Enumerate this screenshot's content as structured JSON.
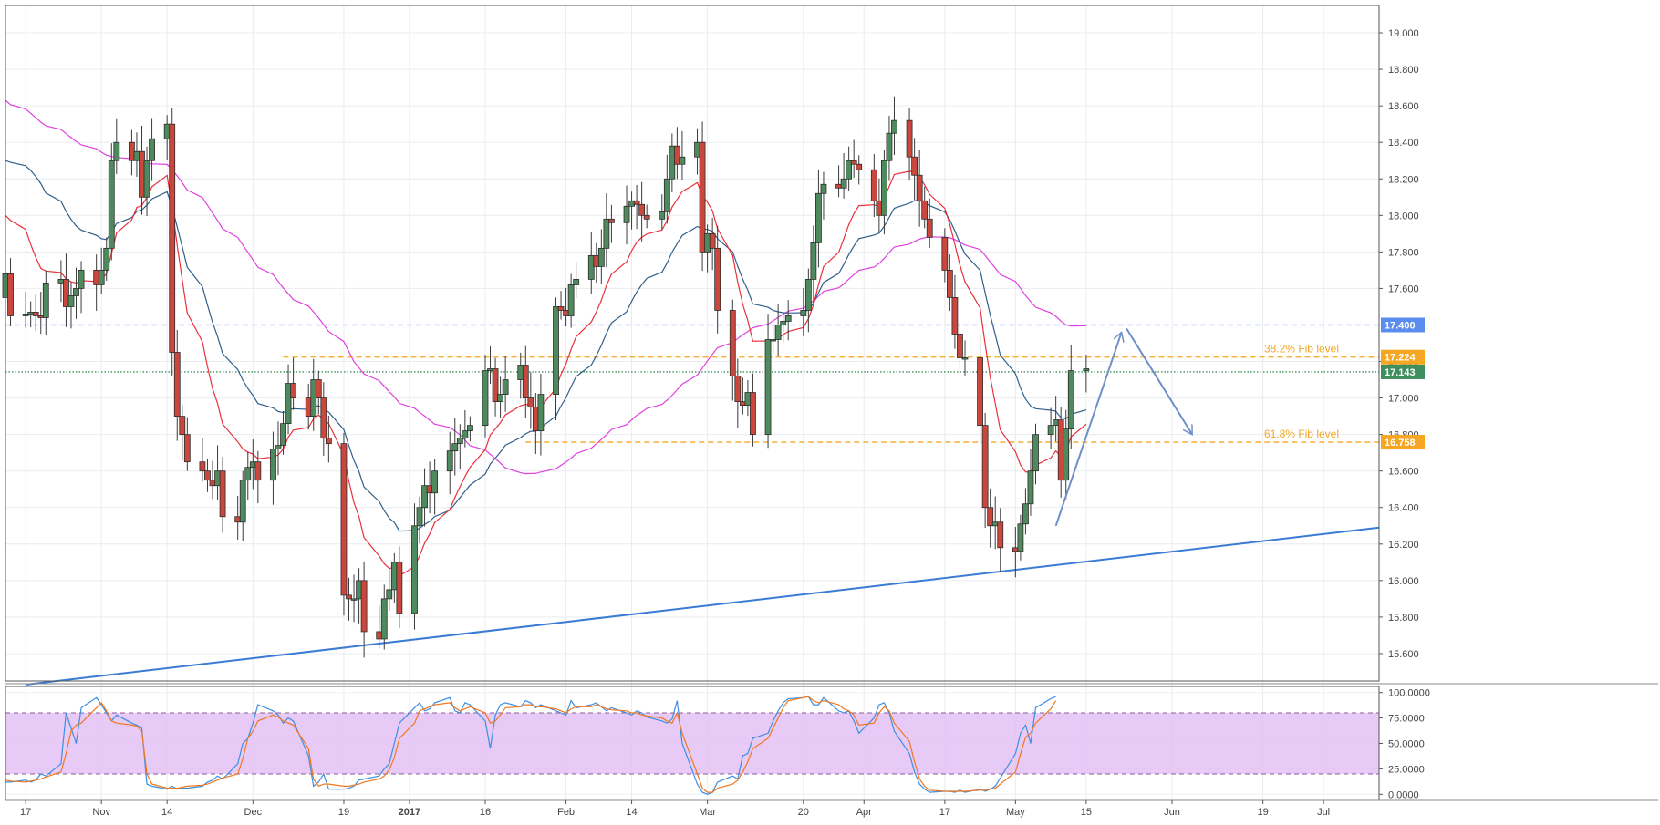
{
  "chart_data": [
    {
      "type": "candlestick",
      "panel": "price",
      "y_axis_ticks": [
        "19.000",
        "18.800",
        "18.600",
        "18.400",
        "18.200",
        "18.000",
        "17.800",
        "17.600",
        "17.400",
        "17.200",
        "17.000",
        "16.800",
        "16.600",
        "16.400",
        "16.200",
        "16.000",
        "15.800",
        "15.600"
      ],
      "ylim": [
        15.45,
        19.15
      ],
      "x_axis_ticks": [
        "17",
        "Nov",
        "14",
        "Dec",
        "19",
        "2017",
        "16",
        "Feb",
        "14",
        "Mar",
        "20",
        "Apr",
        "17",
        "May",
        "15",
        "Jun",
        "19",
        "Jul"
      ],
      "x_tick_dates": [
        "2016-10-17",
        "2016-11-01",
        "2016-11-14",
        "2016-12-01",
        "2016-12-19",
        "2017-01-01",
        "2017-01-16",
        "2017-02-01",
        "2017-02-14",
        "2017-03-01",
        "2017-03-20",
        "2017-04-01",
        "2017-04-17",
        "2017-05-01",
        "2017-05-15",
        "2017-06-01",
        "2017-06-19",
        "2017-07-01"
      ],
      "candles_close": [
        17.68,
        17.45,
        17.46,
        17.47,
        17.45,
        17.44,
        17.63,
        17.65,
        17.5,
        17.56,
        17.6,
        17.7,
        17.62,
        17.7,
        17.82,
        18.3,
        18.4,
        18.3,
        18.35,
        18.1,
        18.3,
        18.42,
        18.5,
        17.25,
        16.9,
        16.8,
        16.65,
        16.6,
        16.55,
        16.52,
        16.6,
        16.35,
        16.32,
        16.55,
        16.62,
        16.65,
        16.55,
        16.72,
        16.74,
        16.86,
        17.08,
        17.0,
        16.9,
        17.1,
        17.0,
        16.78,
        16.75,
        15.92,
        15.9,
        15.9,
        16.0,
        15.72,
        15.68,
        15.9,
        15.95,
        16.1,
        15.82,
        16.3,
        16.4,
        16.52,
        16.48,
        16.6,
        16.71,
        16.75,
        16.78,
        16.82,
        16.85,
        17.15,
        17.16,
        16.98,
        17.02,
        17.1,
        17.18,
        17.0,
        16.95,
        16.82,
        17.02,
        17.5,
        17.48,
        17.45,
        17.62,
        17.65,
        17.78,
        17.72,
        17.82,
        17.98,
        17.96,
        18.05,
        18.08,
        18.06,
        18.0,
        17.98,
        18.02,
        18.2,
        18.38,
        18.28,
        18.32,
        18.4,
        17.8,
        17.9,
        17.82,
        17.48,
        17.12,
        16.98,
        16.96,
        17.03,
        16.8,
        17.32,
        17.32,
        17.4,
        17.42,
        17.45,
        17.48,
        17.65,
        17.85,
        18.12,
        18.17,
        18.15,
        18.2,
        18.3,
        18.28,
        18.25,
        18.08,
        18.0,
        18.3,
        18.45,
        18.52,
        18.32,
        18.22,
        18.08,
        17.98,
        17.88,
        17.7,
        17.55,
        17.35,
        17.22,
        17.22,
        16.85,
        16.4,
        16.3,
        16.32,
        16.18,
        16.16,
        16.31,
        16.42,
        16.6,
        16.8,
        16.85,
        16.88,
        16.55,
        16.83,
        17.15,
        17.16
      ],
      "horizontal_levels": [
        {
          "value": 17.4,
          "label": "17.400",
          "color": "#5b8def",
          "style": "dashed"
        },
        {
          "value": 17.224,
          "label": "17.224",
          "text": "38.2% Fib level",
          "color": "#f5a623",
          "style": "dashed"
        },
        {
          "value": 17.143,
          "label": "17.143",
          "color": "#3e8e5e",
          "style": "dotted"
        },
        {
          "value": 16.758,
          "label": "16.758",
          "text": "61.8% Fib level",
          "color": "#f5a623",
          "style": "dashed"
        }
      ],
      "trendline": {
        "from": {
          "date": "2016-10-17",
          "value": 15.43
        },
        "to": {
          "date": "2017-07-12",
          "value": 16.29
        },
        "color": "#3a7bd5"
      },
      "arrows": [
        {
          "from": {
            "date": "2017-05-09",
            "value": 16.3
          },
          "to": {
            "date": "2017-05-22",
            "value": 17.36
          }
        },
        {
          "from": {
            "date": "2017-05-23",
            "value": 17.38
          },
          "to": {
            "date": "2017-06-05",
            "value": 16.8
          }
        }
      ],
      "colors": {
        "up": "#4f8a5e",
        "down": "#c9473d",
        "ema_fast": "#e8313b",
        "ema_slow": "#2f5f8a",
        "sma_long": "#e040e0"
      }
    },
    {
      "type": "line",
      "panel": "stochastic",
      "y_axis_ticks": [
        "100.0000",
        "75.0000",
        "50.0000",
        "25.0000",
        "0.0000"
      ],
      "ylim": [
        -6,
        106
      ],
      "band": [
        20,
        80
      ],
      "band_color": "#e3c1f5",
      "series": [
        {
          "color": "#3f8fe0",
          "values": [
            12,
            12,
            14,
            12,
            14,
            20,
            18,
            30,
            80,
            65,
            50,
            85,
            95,
            88,
            80,
            72,
            78,
            70,
            68,
            65,
            10,
            8,
            5,
            8,
            5,
            6,
            6,
            8,
            12,
            14,
            18,
            15,
            30,
            50,
            55,
            70,
            88,
            82,
            78,
            70,
            75,
            72,
            38,
            8,
            12,
            20,
            5,
            5,
            6,
            8,
            14,
            15,
            18,
            25,
            30,
            50,
            70,
            85,
            90,
            82,
            84,
            90,
            95,
            82,
            80,
            90,
            88,
            72,
            45,
            78,
            88,
            90,
            86,
            92,
            90,
            85,
            88,
            82,
            80,
            78,
            92,
            85,
            88,
            90,
            86,
            82,
            85,
            80,
            78,
            82,
            80,
            76,
            72,
            70,
            74,
            92,
            50,
            10,
            2,
            0,
            2,
            12,
            18,
            15,
            38,
            40,
            55,
            60,
            72,
            82,
            90,
            94,
            95,
            96,
            88,
            88,
            95,
            82,
            80,
            82,
            72,
            60,
            75,
            88,
            90,
            80,
            62,
            40,
            22,
            10,
            5,
            2,
            3,
            3,
            2,
            4,
            2,
            5,
            3,
            5,
            8,
            16,
            40,
            60,
            68,
            50,
            85,
            94,
            96
          ]
        },
        {
          "color": "#f07820",
          "values": [
            14,
            13,
            12,
            13,
            14,
            15,
            17,
            22,
            40,
            62,
            68,
            70,
            85,
            90,
            82,
            72,
            70,
            68,
            67,
            62,
            20,
            10,
            6,
            6,
            6,
            7,
            8,
            9,
            10,
            12,
            14,
            16,
            20,
            35,
            55,
            62,
            72,
            78,
            76,
            72,
            70,
            68,
            45,
            15,
            8,
            10,
            10,
            8,
            8,
            9,
            10,
            12,
            15,
            18,
            24,
            36,
            55,
            70,
            82,
            84,
            86,
            88,
            90,
            85,
            82,
            84,
            86,
            80,
            70,
            72,
            78,
            85,
            86,
            88,
            88,
            86,
            86,
            84,
            82,
            80,
            84,
            86,
            86,
            88,
            86,
            84,
            83,
            82,
            80,
            80,
            78,
            77,
            75,
            72,
            70,
            80,
            60,
            20,
            6,
            2,
            2,
            6,
            10,
            14,
            22,
            32,
            45,
            55,
            65,
            75,
            85,
            92,
            95,
            96,
            92,
            90,
            92,
            88,
            84,
            82,
            78,
            68,
            70,
            80,
            86,
            82,
            70,
            52,
            32,
            15,
            8,
            4,
            3,
            3,
            3,
            3,
            3,
            4,
            4,
            5,
            6,
            10,
            22,
            40,
            56,
            60,
            70,
            84,
            92
          ]
        }
      ]
    }
  ]
}
